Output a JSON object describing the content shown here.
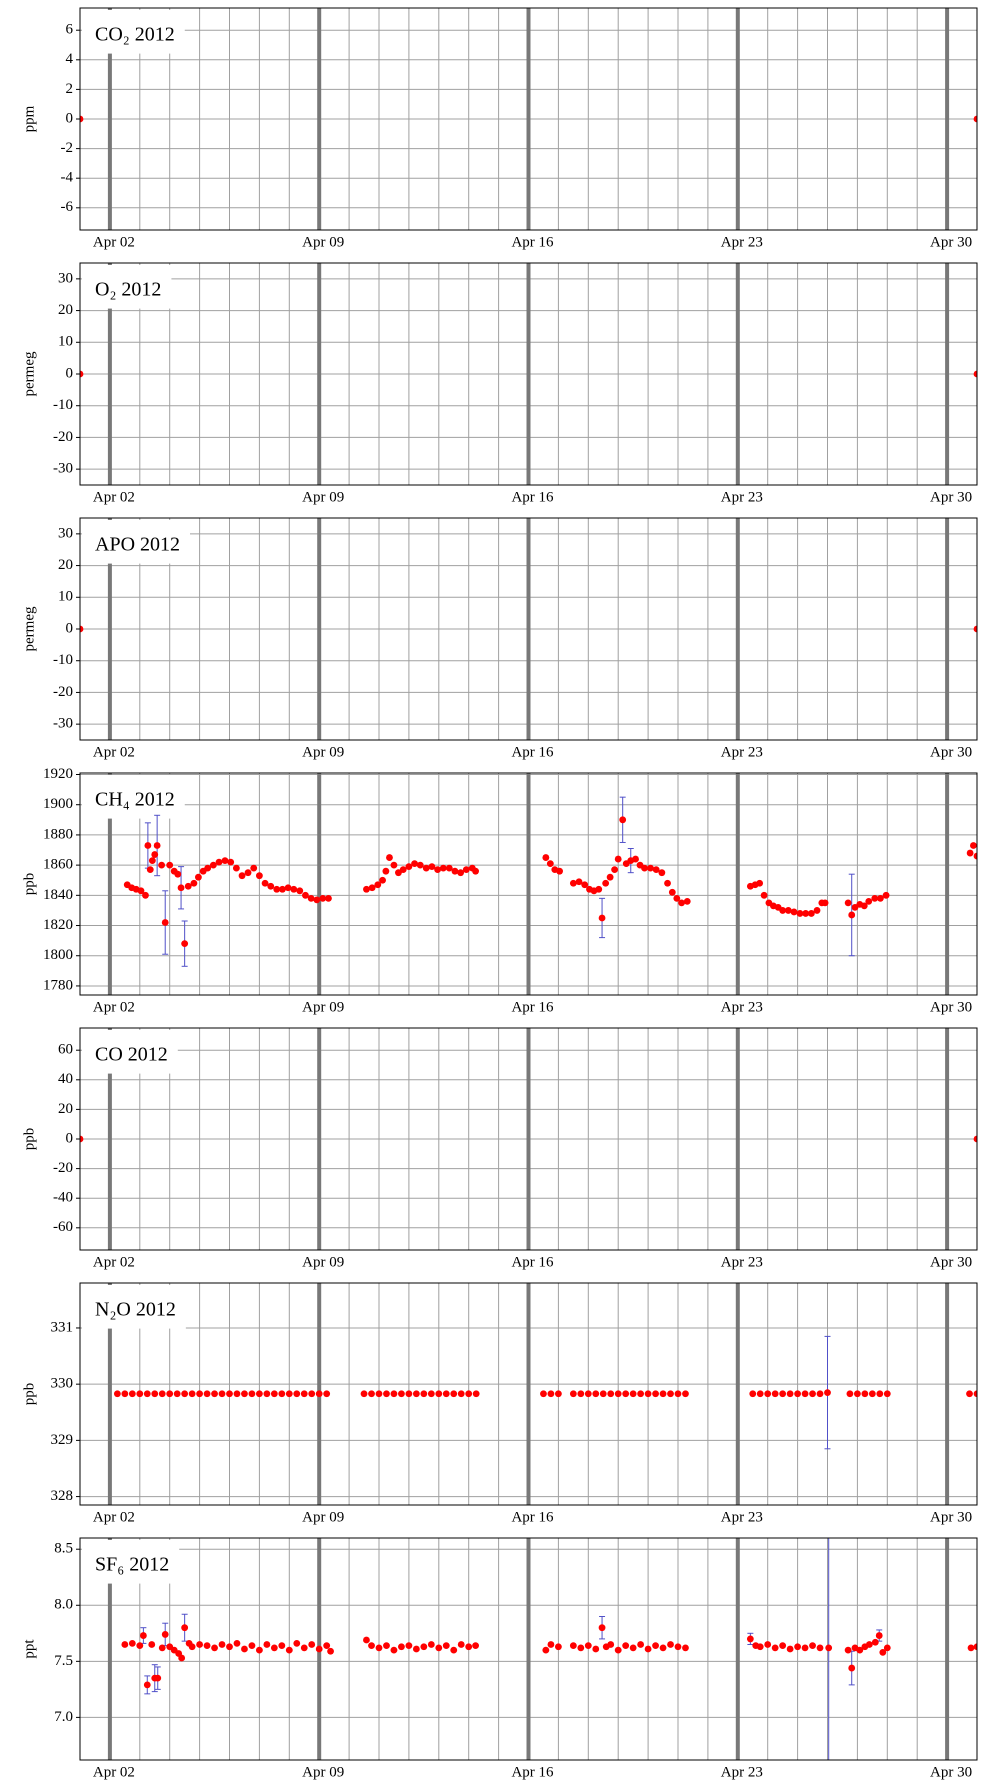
{
  "chart_data": [
    {
      "type": "scatter",
      "title": "CO₂ 2012",
      "ylabel": "ppm",
      "point_color": "#ff0000",
      "error_color": "#5050c8",
      "grid": true,
      "x": [
        1,
        31
      ],
      "values": [
        0,
        0
      ],
      "xlim": [
        1,
        31
      ],
      "xticks": [
        {
          "value": 2,
          "label": "Apr 02"
        },
        {
          "value": 9,
          "label": "Apr 09"
        },
        {
          "value": 16,
          "label": "Apr 16"
        },
        {
          "value": 23,
          "label": "Apr 23"
        },
        {
          "value": 30,
          "label": "Apr 30"
        }
      ],
      "ylim": [
        -7.5,
        7.5
      ],
      "yticks": [
        -6,
        -4,
        -2,
        0,
        2,
        4,
        6
      ]
    },
    {
      "type": "scatter",
      "title": "O₂ 2012",
      "ylabel": "permeg",
      "point_color": "#ff0000",
      "error_color": "#5050c8",
      "grid": true,
      "x": [
        1,
        31
      ],
      "values": [
        0,
        0
      ],
      "xlim": [
        1,
        31
      ],
      "xticks": [
        {
          "value": 2,
          "label": "Apr 02"
        },
        {
          "value": 9,
          "label": "Apr 09"
        },
        {
          "value": 16,
          "label": "Apr 16"
        },
        {
          "value": 23,
          "label": "Apr 23"
        },
        {
          "value": 30,
          "label": "Apr 30"
        }
      ],
      "ylim": [
        -35,
        35
      ],
      "yticks": [
        -30,
        -20,
        -10,
        0,
        10,
        20,
        30
      ]
    },
    {
      "type": "scatter",
      "title": "APO 2012",
      "ylabel": "permeg",
      "point_color": "#ff0000",
      "error_color": "#5050c8",
      "grid": true,
      "x": [
        1,
        31
      ],
      "values": [
        0,
        0
      ],
      "xlim": [
        1,
        31
      ],
      "xticks": [
        {
          "value": 2,
          "label": "Apr 02"
        },
        {
          "value": 9,
          "label": "Apr 09"
        },
        {
          "value": 16,
          "label": "Apr 16"
        },
        {
          "value": 23,
          "label": "Apr 23"
        },
        {
          "value": 30,
          "label": "Apr 30"
        }
      ],
      "ylim": [
        -35,
        35
      ],
      "yticks": [
        -30,
        -20,
        -10,
        0,
        10,
        20,
        30
      ]
    },
    {
      "type": "scatter",
      "title": "CH₄ 2012",
      "ylabel": "ppb",
      "point_color": "#ff0000",
      "error_color": "#5050c8",
      "grid": true,
      "x": [
        2.58,
        2.73,
        2.88,
        3.04,
        3.19,
        3.27,
        3.35,
        3.42,
        3.5,
        3.58,
        3.73,
        3.85,
        4.0,
        4.15,
        4.27,
        4.38,
        4.5,
        4.62,
        4.81,
        4.96,
        5.12,
        5.27,
        5.46,
        5.65,
        5.85,
        6.04,
        6.23,
        6.42,
        6.62,
        6.81,
        7.0,
        7.19,
        7.38,
        7.58,
        7.77,
        7.96,
        8.15,
        8.35,
        8.54,
        8.73,
        8.92,
        9.12,
        9.31,
        10.58,
        10.77,
        10.96,
        11.12,
        11.23,
        11.35,
        11.5,
        11.65,
        11.81,
        12.0,
        12.19,
        12.38,
        12.58,
        12.77,
        12.96,
        13.15,
        13.35,
        13.54,
        13.73,
        13.92,
        14.12,
        14.23,
        16.58,
        16.73,
        16.88,
        17.04,
        17.5,
        17.69,
        17.88,
        18.04,
        18.19,
        18.35,
        18.46,
        18.58,
        18.73,
        18.88,
        19.0,
        19.15,
        19.27,
        19.42,
        19.58,
        19.73,
        19.88,
        20.08,
        20.27,
        20.46,
        20.65,
        20.81,
        20.96,
        21.12,
        21.31,
        23.42,
        23.58,
        23.73,
        23.88,
        24.04,
        24.19,
        24.35,
        24.5,
        24.69,
        24.88,
        25.08,
        25.27,
        25.46,
        25.65,
        25.81,
        25.92,
        26.69,
        26.81,
        26.92,
        27.08,
        27.23,
        27.38,
        27.58,
        27.77,
        27.96,
        30.77,
        30.88,
        31.0
      ],
      "values": [
        1847,
        1845,
        1844,
        1843,
        1840,
        1873,
        1857,
        1863,
        1867,
        1873,
        1860,
        1822,
        1860,
        1856,
        1854,
        1845,
        1808,
        1846,
        1848,
        1852,
        1856,
        1858,
        1860,
        1862,
        1863,
        1862,
        1858,
        1853,
        1855,
        1858,
        1853,
        1848,
        1846,
        1844,
        1844,
        1845,
        1844,
        1843,
        1840,
        1838,
        1837,
        1838,
        1838,
        1844,
        1845,
        1847,
        1850,
        1856,
        1865,
        1860,
        1855,
        1857,
        1859,
        1861,
        1860,
        1858,
        1859,
        1857,
        1858,
        1858,
        1856,
        1855,
        1857,
        1858,
        1856,
        1865,
        1861,
        1857,
        1856,
        1848,
        1849,
        1847,
        1844,
        1843,
        1844,
        1825,
        1848,
        1852,
        1857,
        1864,
        1890,
        1861,
        1863,
        1864,
        1860,
        1858,
        1858,
        1857,
        1855,
        1848,
        1842,
        1838,
        1835,
        1836,
        1846,
        1847,
        1848,
        1840,
        1835,
        1833,
        1832,
        1830,
        1830,
        1829,
        1828,
        1828,
        1828,
        1830,
        1835,
        1835,
        1835,
        1827,
        1832,
        1834,
        1833,
        1836,
        1838,
        1838,
        1840,
        1868,
        1873,
        1866
      ],
      "errors": [
        null,
        null,
        null,
        null,
        null,
        15,
        null,
        null,
        null,
        20,
        null,
        21,
        null,
        null,
        null,
        14,
        15,
        null,
        null,
        null,
        null,
        null,
        null,
        null,
        null,
        null,
        null,
        null,
        null,
        null,
        null,
        null,
        null,
        null,
        null,
        null,
        null,
        null,
        null,
        null,
        null,
        null,
        null,
        null,
        null,
        null,
        null,
        null,
        null,
        null,
        null,
        null,
        null,
        null,
        null,
        null,
        null,
        null,
        null,
        null,
        null,
        null,
        null,
        null,
        null,
        null,
        null,
        null,
        null,
        null,
        null,
        null,
        null,
        null,
        null,
        13,
        null,
        null,
        null,
        null,
        15,
        null,
        8,
        null,
        null,
        null,
        null,
        null,
        null,
        null,
        null,
        null,
        null,
        null,
        null,
        null,
        null,
        null,
        null,
        null,
        null,
        null,
        null,
        null,
        null,
        null,
        null,
        null,
        null,
        null,
        null,
        27,
        null,
        null,
        null,
        null,
        null,
        null,
        null,
        null,
        null,
        null
      ],
      "xlim": [
        1,
        31
      ],
      "xticks": [
        {
          "value": 2,
          "label": "Apr 02"
        },
        {
          "value": 9,
          "label": "Apr 09"
        },
        {
          "value": 16,
          "label": "Apr 16"
        },
        {
          "value": 23,
          "label": "Apr 23"
        },
        {
          "value": 30,
          "label": "Apr 30"
        }
      ],
      "ylim": [
        1774,
        1921
      ],
      "yticks": [
        1780,
        1800,
        1820,
        1840,
        1860,
        1880,
        1900,
        1920
      ]
    },
    {
      "type": "scatter",
      "title": "CO 2012",
      "ylabel": "ppb",
      "point_color": "#ff0000",
      "error_color": "#5050c8",
      "grid": true,
      "x": [
        1,
        31
      ],
      "values": [
        0,
        0
      ],
      "xlim": [
        1,
        31
      ],
      "xticks": [
        {
          "value": 2,
          "label": "Apr 02"
        },
        {
          "value": 9,
          "label": "Apr 09"
        },
        {
          "value": 16,
          "label": "Apr 16"
        },
        {
          "value": 23,
          "label": "Apr 23"
        },
        {
          "value": 30,
          "label": "Apr 30"
        }
      ],
      "ylim": [
        -75,
        75
      ],
      "yticks": [
        -60,
        -40,
        -20,
        0,
        20,
        40,
        60
      ]
    },
    {
      "type": "scatter",
      "title": "N₂O 2012",
      "ylabel": "ppb",
      "point_color": "#ff0000",
      "error_color": "#5050c8",
      "grid": true,
      "x": [
        2.25,
        2.5,
        2.75,
        3,
        3.25,
        3.5,
        3.75,
        4,
        4.25,
        4.5,
        4.75,
        5,
        5.25,
        5.5,
        5.75,
        6,
        6.25,
        6.5,
        6.75,
        7,
        7.25,
        7.5,
        7.75,
        8,
        8.25,
        8.5,
        8.75,
        9,
        9.25,
        10.5,
        10.75,
        11,
        11.25,
        11.5,
        11.75,
        12,
        12.25,
        12.5,
        12.75,
        13,
        13.25,
        13.5,
        13.75,
        14,
        14.25,
        16.5,
        16.75,
        17.0,
        17.5,
        17.75,
        18,
        18.25,
        18.5,
        18.75,
        19,
        19.25,
        19.5,
        19.75,
        20,
        20.25,
        20.5,
        20.75,
        21,
        21.25,
        23.5,
        23.75,
        24,
        24.25,
        24.5,
        24.75,
        25,
        25.25,
        25.5,
        25.75,
        26,
        26.75,
        27,
        27.25,
        27.5,
        27.75,
        28,
        30.75,
        31
      ],
      "values": [
        329.83,
        329.83,
        329.83,
        329.83,
        329.83,
        329.83,
        329.83,
        329.83,
        329.83,
        329.83,
        329.83,
        329.83,
        329.83,
        329.83,
        329.83,
        329.83,
        329.83,
        329.83,
        329.83,
        329.83,
        329.83,
        329.83,
        329.83,
        329.83,
        329.83,
        329.83,
        329.83,
        329.83,
        329.83,
        329.83,
        329.83,
        329.83,
        329.83,
        329.83,
        329.83,
        329.83,
        329.83,
        329.83,
        329.83,
        329.83,
        329.83,
        329.83,
        329.83,
        329.83,
        329.83,
        329.83,
        329.83,
        329.83,
        329.83,
        329.83,
        329.83,
        329.83,
        329.83,
        329.83,
        329.83,
        329.83,
        329.83,
        329.83,
        329.83,
        329.83,
        329.83,
        329.83,
        329.83,
        329.83,
        329.83,
        329.83,
        329.83,
        329.83,
        329.83,
        329.83,
        329.83,
        329.83,
        329.83,
        329.83,
        329.85,
        329.83,
        329.83,
        329.83,
        329.83,
        329.83,
        329.83,
        329.83,
        329.83
      ],
      "errors": [
        null,
        null,
        null,
        null,
        null,
        null,
        null,
        null,
        null,
        null,
        null,
        null,
        null,
        null,
        null,
        null,
        null,
        null,
        null,
        null,
        null,
        null,
        null,
        null,
        null,
        null,
        null,
        null,
        null,
        null,
        null,
        null,
        null,
        null,
        null,
        null,
        null,
        null,
        null,
        null,
        null,
        null,
        null,
        null,
        null,
        null,
        null,
        null,
        null,
        null,
        null,
        null,
        null,
        null,
        null,
        null,
        null,
        null,
        null,
        null,
        null,
        null,
        null,
        null,
        null,
        null,
        null,
        null,
        null,
        null,
        null,
        null,
        null,
        null,
        1.0,
        null,
        null,
        null,
        null,
        null,
        null,
        null,
        null
      ],
      "xlim": [
        1,
        31
      ],
      "xticks": [
        {
          "value": 2,
          "label": "Apr 02"
        },
        {
          "value": 9,
          "label": "Apr 09"
        },
        {
          "value": 16,
          "label": "Apr 16"
        },
        {
          "value": 23,
          "label": "Apr 23"
        },
        {
          "value": 30,
          "label": "Apr 30"
        }
      ],
      "ylim": [
        327.85,
        331.8
      ],
      "yticks": [
        328,
        329,
        330,
        331
      ]
    },
    {
      "type": "scatter",
      "title": "SF₆ 2012",
      "ylabel": "ppt",
      "point_color": "#ff0000",
      "error_color": "#5050c8",
      "grid": true,
      "x": [
        2.5,
        2.75,
        3.0,
        3.12,
        3.25,
        3.4,
        3.5,
        3.6,
        3.75,
        3.85,
        4.0,
        4.15,
        4.3,
        4.4,
        4.5,
        4.65,
        4.75,
        5,
        5.25,
        5.5,
        5.75,
        6,
        6.25,
        6.5,
        6.75,
        7,
        7.25,
        7.5,
        7.75,
        8,
        8.25,
        8.5,
        8.75,
        9,
        9.25,
        9.38,
        10.58,
        10.75,
        11,
        11.25,
        11.5,
        11.75,
        12,
        12.25,
        12.5,
        12.75,
        13,
        13.25,
        13.5,
        13.75,
        14,
        14.23,
        16.58,
        16.75,
        17,
        17.5,
        17.75,
        18,
        18.25,
        18.46,
        18.6,
        18.75,
        19,
        19.25,
        19.5,
        19.75,
        20,
        20.25,
        20.5,
        20.75,
        21,
        21.25,
        23.42,
        23.6,
        23.75,
        24,
        24.25,
        24.5,
        24.75,
        25,
        25.25,
        25.5,
        25.75,
        26.04,
        26.69,
        26.81,
        26.92,
        27.08,
        27.25,
        27.4,
        27.6,
        27.73,
        27.85,
        28,
        30.8,
        31
      ],
      "values": [
        7.65,
        7.66,
        7.64,
        7.73,
        7.29,
        7.65,
        7.35,
        7.35,
        7.62,
        7.74,
        7.63,
        7.6,
        7.57,
        7.53,
        7.8,
        7.66,
        7.63,
        7.65,
        7.64,
        7.62,
        7.65,
        7.63,
        7.66,
        7.61,
        7.64,
        7.6,
        7.65,
        7.62,
        7.64,
        7.6,
        7.66,
        7.62,
        7.65,
        7.61,
        7.64,
        7.59,
        7.69,
        7.64,
        7.62,
        7.64,
        7.6,
        7.63,
        7.64,
        7.61,
        7.63,
        7.65,
        7.62,
        7.64,
        7.6,
        7.65,
        7.63,
        7.64,
        7.6,
        7.65,
        7.63,
        7.64,
        7.62,
        7.64,
        7.61,
        7.8,
        7.63,
        7.65,
        7.6,
        7.64,
        7.62,
        7.65,
        7.61,
        7.64,
        7.62,
        7.65,
        7.63,
        7.62,
        7.7,
        7.64,
        7.63,
        7.65,
        7.62,
        7.64,
        7.61,
        7.63,
        7.62,
        7.64,
        7.62,
        7.62,
        7.6,
        7.44,
        7.62,
        7.6,
        7.63,
        7.65,
        7.67,
        7.73,
        7.58,
        7.62,
        7.62,
        7.63
      ],
      "errors": [
        null,
        null,
        null,
        0.07,
        0.08,
        null,
        0.12,
        0.1,
        null,
        0.1,
        null,
        null,
        null,
        null,
        0.12,
        null,
        null,
        null,
        null,
        null,
        null,
        null,
        null,
        null,
        null,
        null,
        null,
        null,
        null,
        null,
        null,
        null,
        null,
        null,
        null,
        null,
        null,
        null,
        null,
        null,
        null,
        null,
        null,
        null,
        null,
        null,
        null,
        null,
        null,
        null,
        null,
        null,
        null,
        null,
        null,
        null,
        null,
        null,
        null,
        0.1,
        null,
        null,
        null,
        null,
        null,
        null,
        null,
        null,
        null,
        null,
        null,
        null,
        0.05,
        null,
        null,
        null,
        null,
        null,
        null,
        null,
        null,
        null,
        null,
        1.0,
        null,
        0.15,
        null,
        null,
        null,
        null,
        null,
        0.05,
        null,
        null,
        null,
        null
      ],
      "xlim": [
        1,
        31
      ],
      "xticks": [
        {
          "value": 2,
          "label": "Apr 02"
        },
        {
          "value": 9,
          "label": "Apr 09"
        },
        {
          "value": 16,
          "label": "Apr 16"
        },
        {
          "value": 23,
          "label": "Apr 23"
        },
        {
          "value": 30,
          "label": "Apr 30"
        }
      ],
      "ylim": [
        6.62,
        8.6
      ],
      "yticks": [
        {
          "value": 7.0,
          "label": "7.0"
        },
        7.5,
        {
          "value": 8.0,
          "label": "8.0"
        },
        8.5
      ]
    }
  ]
}
